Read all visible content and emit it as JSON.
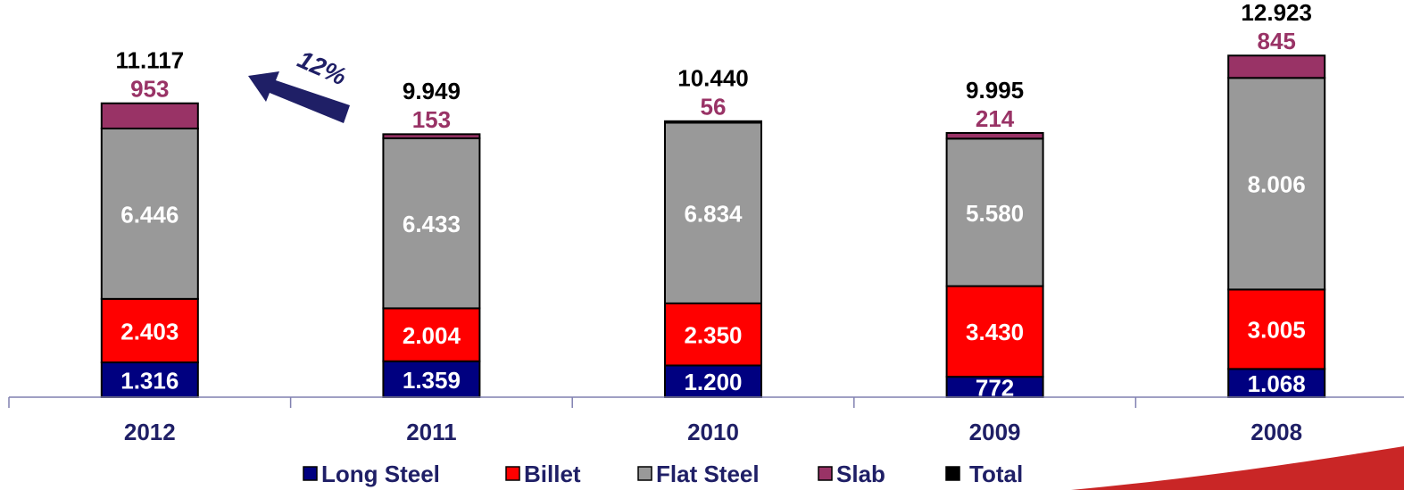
{
  "chart_data": {
    "type": "stacked_bar",
    "categories": [
      "2012",
      "2011",
      "2010",
      "2009",
      "2008"
    ],
    "series": [
      {
        "name": "Long Steel",
        "color": "#000080",
        "values": [
          1316,
          1359,
          1200,
          772,
          1068
        ],
        "value_labels": [
          "1.316",
          "1.359",
          "1.200",
          "772",
          "1.068"
        ]
      },
      {
        "name": "Billet",
        "color": "#ff0000",
        "values": [
          2403,
          2004,
          2350,
          3430,
          3005
        ],
        "value_labels": [
          "2.403",
          "2.004",
          "2.350",
          "3.430",
          "3.005"
        ]
      },
      {
        "name": "Flat Steel",
        "color": "#999999",
        "values": [
          6446,
          6433,
          6834,
          5580,
          8006
        ],
        "value_labels": [
          "6.446",
          "6.433",
          "6.834",
          "5.580",
          "8.006"
        ]
      },
      {
        "name": "Slab",
        "color": "#993366",
        "values": [
          953,
          153,
          56,
          214,
          845
        ]
      },
      {
        "name": "Total",
        "color": "#000000",
        "values": [
          11117,
          9949,
          10440,
          9995,
          12923
        ],
        "value_labels": [
          "11.117",
          "9.949",
          "10.440",
          "9.995",
          "12.923"
        ]
      }
    ],
    "ylim": [
      0,
      13000
    ],
    "annotation": "12%"
  }
}
